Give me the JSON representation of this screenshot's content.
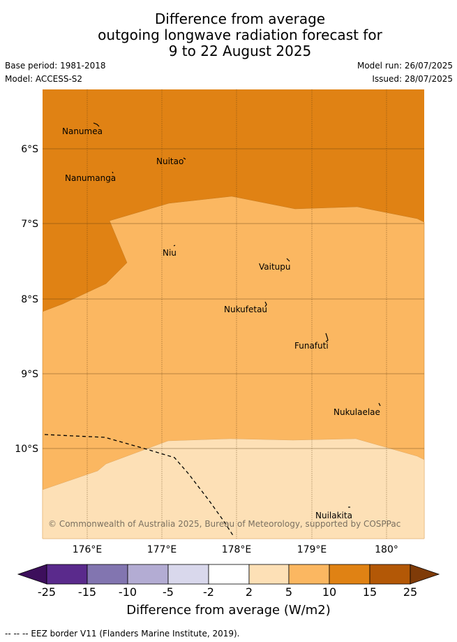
{
  "title": {
    "line1": "Difference from average",
    "line2": "outgoing longwave radiation forecast for",
    "line3": "9 to 22 August 2025"
  },
  "meta": {
    "base_period": "Base period: 1981-2018",
    "model": "Model: ACCESS-S2",
    "model_run": "Model run: 26/07/2025",
    "issued": "Issued: 28/07/2025"
  },
  "axes": {
    "y_ticks": [
      "6°S",
      "7°S",
      "8°S",
      "9°S",
      "10°S"
    ],
    "x_ticks": [
      "176°E",
      "177°E",
      "178°E",
      "179°E",
      "180°"
    ]
  },
  "islands": [
    {
      "name": "Nanumea"
    },
    {
      "name": "Nuitao"
    },
    {
      "name": "Nanumanga"
    },
    {
      "name": "Niu"
    },
    {
      "name": "Vaitupu"
    },
    {
      "name": "Nukufetau"
    },
    {
      "name": "Funafuti"
    },
    {
      "name": "Nukulaelae"
    },
    {
      "name": "Nuilakita"
    }
  ],
  "copyright": "© Commonwealth of Australia 2025, Bureau of Meteorology, supported by COSPPac",
  "colorbar": {
    "title": "Difference from average (W/m2)",
    "ticks": [
      "-25",
      "-15",
      "-10",
      "-5",
      "-2",
      "2",
      "5",
      "10",
      "15",
      "25"
    ],
    "colors": [
      "#3d0f5c",
      "#5a2a8c",
      "#8275b0",
      "#b3acd3",
      "#d9d8ec",
      "#ffffff",
      "#fde0b6",
      "#fbb761",
      "#e08214",
      "#b35806",
      "#7f3b08"
    ]
  },
  "map_colors": {
    "band_10_15": "#e08214",
    "band_5_10": "#fbb761",
    "band_2_5": "#fde0b6"
  },
  "footnote": "-- -- -- EEZ border V11 (Flanders Marine Institute, 2019)."
}
